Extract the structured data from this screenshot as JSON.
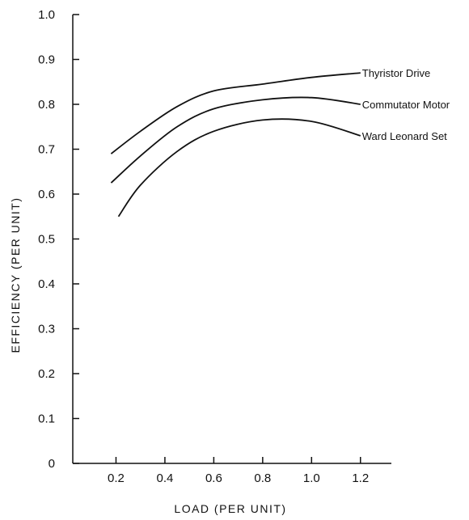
{
  "chart_data": {
    "type": "line",
    "title": "",
    "xlabel": "LOAD (PER UNIT)",
    "ylabel": "EFFICIENCY (PER UNIT)",
    "xlim": [
      0,
      1.3
    ],
    "ylim": [
      0,
      1.0
    ],
    "x_ticks": [
      "0.2",
      "0.4",
      "0.6",
      "0.8",
      "1.0",
      "1.2"
    ],
    "y_ticks": [
      "0",
      "0.1",
      "0.2",
      "0.3",
      "0.4",
      "0.5",
      "0.6",
      "0.7",
      "0.8",
      "0.9",
      "1.0"
    ],
    "grid": false,
    "series": [
      {
        "name": "Thyristor Drive",
        "x": [
          0.18,
          0.3,
          0.45,
          0.6,
          0.8,
          1.0,
          1.2
        ],
        "y": [
          0.69,
          0.74,
          0.795,
          0.83,
          0.845,
          0.86,
          0.87
        ]
      },
      {
        "name": "Commutator Motor",
        "x": [
          0.18,
          0.3,
          0.45,
          0.6,
          0.8,
          1.0,
          1.2
        ],
        "y": [
          0.625,
          0.685,
          0.75,
          0.79,
          0.81,
          0.815,
          0.8
        ]
      },
      {
        "name": "Ward Leonard Set",
        "x": [
          0.21,
          0.3,
          0.45,
          0.6,
          0.8,
          1.0,
          1.2
        ],
        "y": [
          0.55,
          0.62,
          0.695,
          0.74,
          0.765,
          0.762,
          0.73
        ]
      }
    ]
  }
}
